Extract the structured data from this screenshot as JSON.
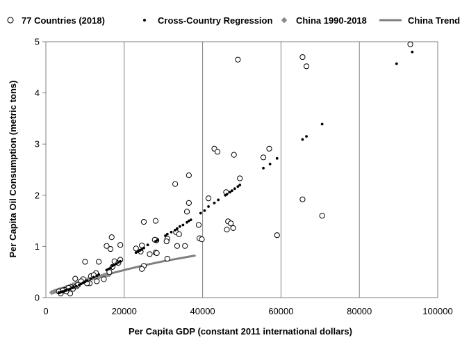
{
  "chart_data": {
    "type": "scatter",
    "xlabel": "Per Capita GDP (constant 2011 international dollars)",
    "ylabel": "Per Capita Oil Consumption (metric tons)",
    "xlim": [
      0,
      100000
    ],
    "ylim": [
      0,
      5
    ],
    "x_ticks": [
      "0",
      "20000",
      "40000",
      "60000",
      "80000",
      "100000"
    ],
    "y_ticks": [
      "0",
      "1",
      "2",
      "3",
      "4",
      "5"
    ],
    "grid": "vertical",
    "legend_position": "top",
    "legend": [
      {
        "label": "77 Countries (2018)",
        "marker": "open-circle"
      },
      {
        "label": "Cross-Country Regression",
        "marker": "dot"
      },
      {
        "label": "China 1990-2018",
        "marker": "grey-diamond"
      },
      {
        "label": "China Trend",
        "marker": "grey-line"
      }
    ],
    "series": [
      {
        "name": "77 Countries (2018)",
        "points": [
          [
            93000,
            4.95
          ],
          [
            65500,
            4.7
          ],
          [
            66500,
            4.52
          ],
          [
            49000,
            4.65
          ],
          [
            43000,
            2.91
          ],
          [
            43800,
            2.85
          ],
          [
            48000,
            2.79
          ],
          [
            57000,
            2.91
          ],
          [
            55500,
            2.74
          ],
          [
            36500,
            2.39
          ],
          [
            33000,
            2.22
          ],
          [
            49500,
            2.33
          ],
          [
            46000,
            2.06
          ],
          [
            41500,
            1.94
          ],
          [
            36500,
            1.85
          ],
          [
            65500,
            1.92
          ],
          [
            36000,
            1.68
          ],
          [
            25000,
            1.48
          ],
          [
            28000,
            1.5
          ],
          [
            46500,
            1.49
          ],
          [
            47200,
            1.45
          ],
          [
            46200,
            1.33
          ],
          [
            47800,
            1.36
          ],
          [
            70500,
            1.6
          ],
          [
            39000,
            1.42
          ],
          [
            33200,
            1.28
          ],
          [
            34000,
            1.24
          ],
          [
            39200,
            1.16
          ],
          [
            39800,
            1.14
          ],
          [
            59000,
            1.22
          ],
          [
            31000,
            1.15
          ],
          [
            30800,
            1.1
          ],
          [
            28200,
            1.12
          ],
          [
            27800,
            1.13
          ],
          [
            16800,
            1.18
          ],
          [
            15500,
            1.01
          ],
          [
            16500,
            0.95
          ],
          [
            19000,
            1.03
          ],
          [
            23000,
            0.96
          ],
          [
            24500,
            1.02
          ],
          [
            24200,
            0.9
          ],
          [
            26500,
            0.85
          ],
          [
            28000,
            0.88
          ],
          [
            28300,
            0.87
          ],
          [
            33500,
            1.01
          ],
          [
            35500,
            1.01
          ],
          [
            31000,
            0.76
          ],
          [
            25000,
            0.62
          ],
          [
            24500,
            0.56
          ],
          [
            17500,
            0.71
          ],
          [
            18500,
            0.68
          ],
          [
            19000,
            0.74
          ],
          [
            10000,
            0.7
          ],
          [
            13500,
            0.7
          ],
          [
            12800,
            0.48
          ],
          [
            11500,
            0.42
          ],
          [
            13000,
            0.32
          ],
          [
            11200,
            0.28
          ],
          [
            9500,
            0.36
          ],
          [
            7500,
            0.37
          ],
          [
            7800,
            0.22
          ],
          [
            6500,
            0.2
          ],
          [
            5800,
            0.19
          ],
          [
            4800,
            0.15
          ],
          [
            6200,
            0.08
          ],
          [
            3800,
            0.08
          ],
          [
            5200,
            0.12
          ],
          [
            9000,
            0.32
          ],
          [
            12200,
            0.44
          ],
          [
            14800,
            0.36
          ],
          [
            16200,
            0.5
          ],
          [
            17000,
            0.6
          ],
          [
            8200,
            0.25
          ],
          [
            10500,
            0.28
          ],
          [
            4300,
            0.14
          ],
          [
            3300,
            0.12
          ],
          [
            6900,
            0.17
          ]
        ]
      },
      {
        "name": "Cross-Country Regression",
        "points": [
          [
            93500,
            4.8
          ],
          [
            89500,
            4.57
          ],
          [
            70500,
            3.39
          ],
          [
            66500,
            3.15
          ],
          [
            65500,
            3.09
          ],
          [
            59000,
            2.72
          ],
          [
            57200,
            2.61
          ],
          [
            55500,
            2.53
          ],
          [
            49500,
            2.2
          ],
          [
            49000,
            2.17
          ],
          [
            48200,
            2.13
          ],
          [
            47500,
            2.09
          ],
          [
            47000,
            2.06
          ],
          [
            46200,
            2.02
          ],
          [
            45800,
            2.0
          ],
          [
            44000,
            1.91
          ],
          [
            43000,
            1.85
          ],
          [
            41500,
            1.78
          ],
          [
            40500,
            1.7
          ],
          [
            39500,
            1.65
          ],
          [
            37000,
            1.52
          ],
          [
            36500,
            1.5
          ],
          [
            36000,
            1.47
          ],
          [
            35000,
            1.42
          ],
          [
            34200,
            1.39
          ],
          [
            33500,
            1.35
          ],
          [
            33000,
            1.32
          ],
          [
            32000,
            1.28
          ],
          [
            31000,
            1.24
          ],
          [
            30500,
            1.21
          ],
          [
            28500,
            1.12
          ],
          [
            28000,
            1.1
          ],
          [
            26000,
            1.03
          ],
          [
            25000,
            0.97
          ],
          [
            24500,
            0.94
          ],
          [
            24000,
            0.92
          ],
          [
            23500,
            0.9
          ],
          [
            23000,
            0.88
          ],
          [
            19000,
            0.71
          ],
          [
            18500,
            0.69
          ],
          [
            18000,
            0.66
          ],
          [
            17500,
            0.64
          ],
          [
            17000,
            0.62
          ],
          [
            16500,
            0.58
          ],
          [
            16000,
            0.56
          ],
          [
            15500,
            0.54
          ],
          [
            13500,
            0.45
          ],
          [
            13000,
            0.43
          ],
          [
            12200,
            0.4
          ],
          [
            11500,
            0.37
          ],
          [
            10500,
            0.33
          ],
          [
            10000,
            0.31
          ],
          [
            9500,
            0.29
          ],
          [
            9000,
            0.27
          ],
          [
            8500,
            0.25
          ],
          [
            7800,
            0.22
          ],
          [
            7200,
            0.2
          ],
          [
            6800,
            0.19
          ],
          [
            6200,
            0.17
          ],
          [
            5800,
            0.16
          ],
          [
            5200,
            0.14
          ],
          [
            4800,
            0.13
          ],
          [
            4300,
            0.12
          ],
          [
            3800,
            0.11
          ],
          [
            3300,
            0.1
          ]
        ]
      },
      {
        "name": "China 1990-2018",
        "points": [
          [
            1500,
            0.1
          ],
          [
            1900,
            0.11
          ],
          [
            2200,
            0.12
          ],
          [
            2600,
            0.13
          ],
          [
            3000,
            0.14
          ],
          [
            3300,
            0.15
          ],
          [
            3700,
            0.16
          ],
          [
            4200,
            0.17
          ],
          [
            4700,
            0.18
          ],
          [
            5200,
            0.2
          ],
          [
            5700,
            0.21
          ],
          [
            6300,
            0.23
          ],
          [
            6900,
            0.25
          ],
          [
            7600,
            0.27
          ],
          [
            8300,
            0.29
          ],
          [
            9100,
            0.31
          ],
          [
            9900,
            0.33
          ],
          [
            10600,
            0.35
          ],
          [
            11300,
            0.37
          ],
          [
            11900,
            0.38
          ],
          [
            12500,
            0.39
          ],
          [
            13100,
            0.4
          ],
          [
            13700,
            0.41
          ],
          [
            14200,
            0.42
          ],
          [
            14700,
            0.43
          ],
          [
            15100,
            0.44
          ],
          [
            15500,
            0.44
          ],
          [
            15900,
            0.45
          ],
          [
            16200,
            0.45
          ]
        ]
      },
      {
        "name": "China Trend",
        "points": [
          [
            1200,
            0.1
          ],
          [
            5000,
            0.2
          ],
          [
            10000,
            0.33
          ],
          [
            15000,
            0.44
          ],
          [
            20000,
            0.54
          ],
          [
            25000,
            0.63
          ],
          [
            30000,
            0.71
          ],
          [
            38000,
            0.82
          ]
        ]
      }
    ]
  }
}
